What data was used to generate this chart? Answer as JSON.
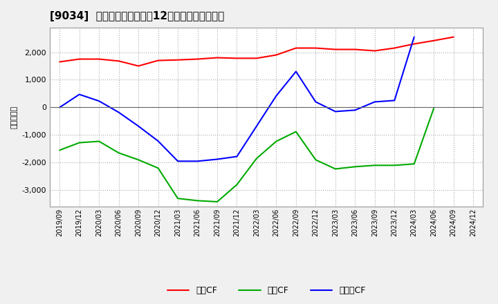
{
  "title": "[9034]  キャッシュフローの12か月移動合計の推移",
  "ylabel": "（百万円）",
  "x_labels": [
    "2019/09",
    "2019/12",
    "2020/03",
    "2020/06",
    "2020/09",
    "2020/12",
    "2021/03",
    "2021/06",
    "2021/09",
    "2021/12",
    "2022/03",
    "2022/06",
    "2022/09",
    "2022/12",
    "2023/03",
    "2023/06",
    "2023/09",
    "2023/12",
    "2024/03",
    "2024/06",
    "2024/09",
    "2024/12"
  ],
  "eigyo_cf": [
    1650,
    1750,
    1750,
    1680,
    1500,
    1700,
    1720,
    1750,
    1800,
    1780,
    1780,
    1900,
    2150,
    2150,
    2100,
    2100,
    2050,
    2150,
    2300,
    2420,
    2550,
    null
  ],
  "toshi_cf": [
    -1550,
    -1280,
    -1230,
    -1650,
    -1900,
    -2200,
    -3300,
    -3380,
    -3420,
    -2800,
    -1850,
    -1230,
    -880,
    -1900,
    -2230,
    -2150,
    -2100,
    -2100,
    -2050,
    -30,
    null,
    null
  ],
  "free_cf": [
    0,
    470,
    230,
    -180,
    -680,
    -1220,
    -1950,
    -1950,
    -1880,
    -1780,
    -680,
    420,
    1300,
    200,
    -150,
    -100,
    200,
    250,
    2550,
    null,
    null,
    null
  ],
  "ylim": [
    -3600,
    2900
  ],
  "yticks": [
    -3000,
    -2000,
    -1000,
    0,
    1000,
    2000
  ],
  "bg_color": "#f0f0f0",
  "plot_bg_color": "#ffffff",
  "grid_color": "#aaaaaa",
  "eigyo_color": "#ff0000",
  "toshi_color": "#00aa00",
  "free_color": "#0000ff",
  "legend_labels": [
    "営業CF",
    "投資CF",
    "フリーCF"
  ]
}
